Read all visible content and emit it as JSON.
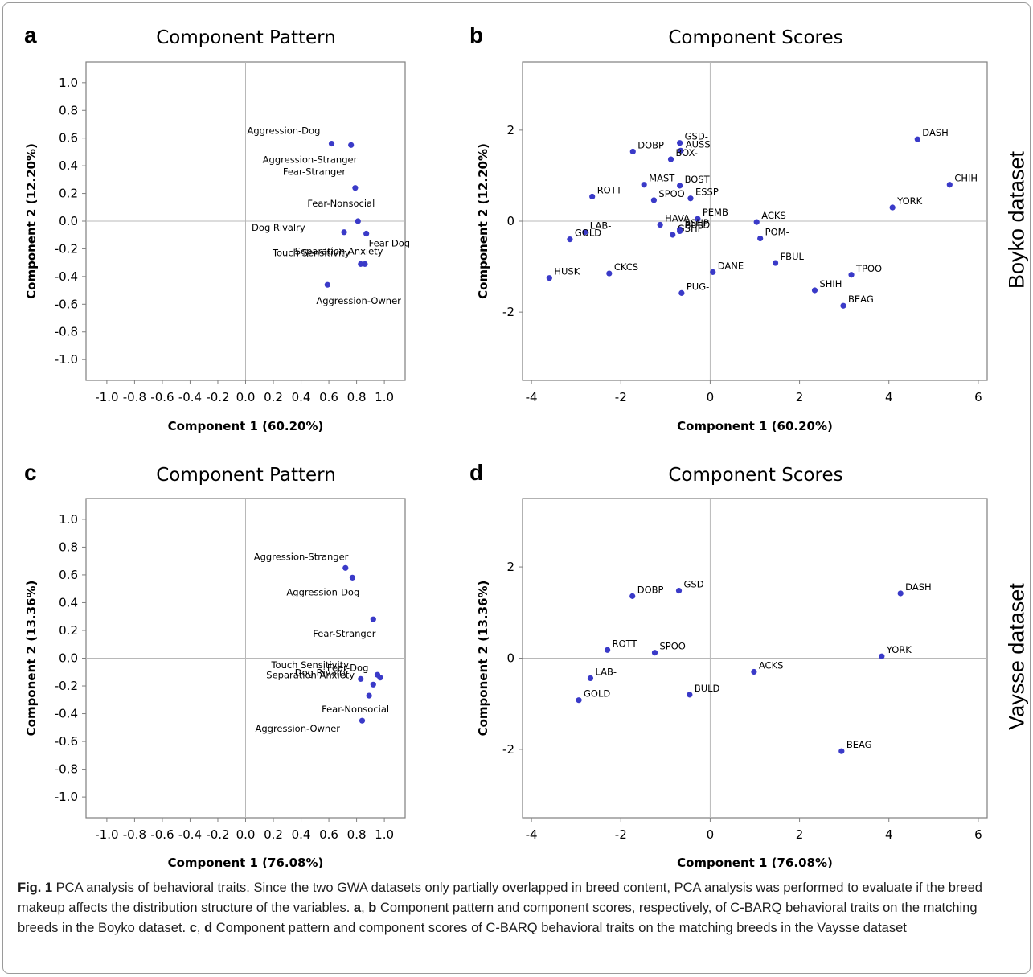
{
  "panels": [
    {
      "letter": "a",
      "chart_data": {
        "type": "scatter",
        "title": "Component Pattern",
        "xlabel": "Component 1 (60.20%)",
        "ylabel": "Component 2 (12.20%)",
        "xlim": [
          -1.15,
          1.15
        ],
        "ylim": [
          -1.15,
          1.15
        ],
        "xticks": [
          "-1.0",
          "-0.8",
          "-0.6",
          "-0.4",
          "-0.2",
          "0.0",
          "0.2",
          "0.4",
          "0.6",
          "0.8",
          "1.0"
        ],
        "xtick_values": [
          -1.0,
          -0.8,
          -0.6,
          -0.4,
          -0.2,
          0.0,
          0.2,
          0.4,
          0.6,
          0.8,
          1.0
        ],
        "yticks": [
          "1.0",
          "0.8",
          "0.6",
          "0.4",
          "0.2",
          "0.0",
          "-0.2",
          "-0.4",
          "-0.6",
          "-0.8",
          "-1.0"
        ],
        "ytick_values": [
          1.0,
          0.8,
          0.6,
          0.4,
          0.2,
          0.0,
          -0.2,
          -0.4,
          -0.6,
          -0.8,
          -1.0
        ],
        "points": [
          {
            "label": "Aggression-Dog",
            "x": 0.62,
            "y": 0.56
          },
          {
            "label": "Aggression-Stranger",
            "x": 0.76,
            "y": 0.55
          },
          {
            "label": "Fear-Stranger",
            "x": 0.79,
            "y": 0.24
          },
          {
            "label": "Fear-Nonsocial",
            "x": 0.81,
            "y": 0.0
          },
          {
            "label": "Dog Rivalry",
            "x": 0.71,
            "y": -0.08
          },
          {
            "label": "Fear-Dog",
            "x": 0.87,
            "y": -0.09
          },
          {
            "label": "Touch Sensitivity",
            "x": 0.86,
            "y": -0.31
          },
          {
            "label": "Separation Anxiety",
            "x": 0.83,
            "y": -0.31
          },
          {
            "label": "Aggression-Owner",
            "x": 0.59,
            "y": -0.46
          }
        ]
      }
    },
    {
      "letter": "b",
      "chart_data": {
        "type": "scatter",
        "title": "Component Scores",
        "xlabel": "Component 1 (60.20%)",
        "ylabel": "Component 2 (12.20%)",
        "xlim": [
          -4.2,
          6.2
        ],
        "ylim": [
          -3.5,
          3.5
        ],
        "xticks": [
          "-4",
          "-2",
          "0",
          "2",
          "4",
          "6"
        ],
        "xtick_values": [
          -4,
          -2,
          0,
          2,
          4,
          6
        ],
        "yticks": [
          "2",
          "0",
          "-2"
        ],
        "ytick_values": [
          2,
          0,
          -2
        ],
        "points": [
          {
            "label": "GSD-",
            "x": -0.68,
            "y": 1.72
          },
          {
            "label": "AUSS",
            "x": -0.66,
            "y": 1.55
          },
          {
            "label": "DOBP",
            "x": -1.73,
            "y": 1.53
          },
          {
            "label": "BOX-",
            "x": -0.88,
            "y": 1.36
          },
          {
            "label": "MAST",
            "x": -1.48,
            "y": 0.8
          },
          {
            "label": "BOST",
            "x": -0.68,
            "y": 0.78
          },
          {
            "label": "ROTT",
            "x": -2.64,
            "y": 0.54
          },
          {
            "label": "ESSP",
            "x": -0.44,
            "y": 0.5
          },
          {
            "label": "SPOO",
            "x": -1.26,
            "y": 0.46
          },
          {
            "label": "PEMB",
            "x": -0.28,
            "y": 0.05
          },
          {
            "label": "HAVA",
            "x": -1.12,
            "y": -0.08
          },
          {
            "label": "SSHP",
            "x": -0.68,
            "y": -0.18
          },
          {
            "label": "GSHP",
            "x": -0.84,
            "y": -0.3
          },
          {
            "label": "BULD",
            "x": -0.68,
            "y": -0.22
          },
          {
            "label": "LAB-",
            "x": -2.8,
            "y": -0.24
          },
          {
            "label": "GOLD",
            "x": -3.14,
            "y": -0.4
          },
          {
            "label": "HUSK",
            "x": -3.6,
            "y": -1.25
          },
          {
            "label": "CKCS",
            "x": -2.26,
            "y": -1.15
          },
          {
            "label": "DANE",
            "x": 0.06,
            "y": -1.12
          },
          {
            "label": "PUG-",
            "x": -0.64,
            "y": -1.58
          },
          {
            "label": "ACKS",
            "x": 1.04,
            "y": -0.02
          },
          {
            "label": "POM-",
            "x": 1.12,
            "y": -0.38
          },
          {
            "label": "FBUL",
            "x": 1.46,
            "y": -0.92
          },
          {
            "label": "SHIH",
            "x": 2.34,
            "y": -1.52
          },
          {
            "label": "TPOO",
            "x": 3.16,
            "y": -1.18
          },
          {
            "label": "BEAG",
            "x": 2.98,
            "y": -1.86
          },
          {
            "label": "YORK",
            "x": 4.08,
            "y": 0.3
          },
          {
            "label": "DASH",
            "x": 4.64,
            "y": 1.8
          },
          {
            "label": "CHIH",
            "x": 5.36,
            "y": 0.8
          }
        ]
      }
    },
    {
      "letter": "c",
      "chart_data": {
        "type": "scatter",
        "title": "Component Pattern",
        "xlabel": "Component 1 (76.08%)",
        "ylabel": "Component 2 (13.36%)",
        "xlim": [
          -1.15,
          1.15
        ],
        "ylim": [
          -1.15,
          1.15
        ],
        "xticks": [
          "-1.0",
          "-0.8",
          "-0.6",
          "-0.4",
          "-0.2",
          "0.0",
          "0.2",
          "0.4",
          "0.6",
          "0.8",
          "1.0"
        ],
        "xtick_values": [
          -1.0,
          -0.8,
          -0.6,
          -0.4,
          -0.2,
          0.0,
          0.2,
          0.4,
          0.6,
          0.8,
          1.0
        ],
        "yticks": [
          "1.0",
          "0.8",
          "0.6",
          "0.4",
          "0.2",
          "0.0",
          "-0.2",
          "-0.4",
          "-0.6",
          "-0.8",
          "-1.0"
        ],
        "ytick_values": [
          1.0,
          0.8,
          0.6,
          0.4,
          0.2,
          0.0,
          -0.2,
          -0.4,
          -0.6,
          -0.8,
          -1.0
        ],
        "points": [
          {
            "label": "Aggression-Stranger",
            "x": 0.72,
            "y": 0.65
          },
          {
            "label": "Aggression-Dog",
            "x": 0.77,
            "y": 0.58
          },
          {
            "label": "Fear-Stranger",
            "x": 0.92,
            "y": 0.28
          },
          {
            "label": "Touch Sensitivity",
            "x": 0.95,
            "y": -0.12
          },
          {
            "label": "Fear-Dog",
            "x": 0.97,
            "y": -0.14
          },
          {
            "label": "Dog Rivalry",
            "x": 0.83,
            "y": -0.15
          },
          {
            "label": "Separation Anxiety",
            "x": 0.92,
            "y": -0.19
          },
          {
            "label": "Fear-Nonsocial",
            "x": 0.89,
            "y": -0.27
          },
          {
            "label": "Aggression-Owner",
            "x": 0.84,
            "y": -0.45
          }
        ]
      }
    },
    {
      "letter": "d",
      "chart_data": {
        "type": "scatter",
        "title": "Component Scores",
        "xlabel": "Component 1 (76.08%)",
        "ylabel": "Component 2 (13.36%)",
        "xlim": [
          -4.2,
          6.2
        ],
        "ylim": [
          -3.5,
          3.5
        ],
        "xticks": [
          "-4",
          "-2",
          "0",
          "2",
          "4",
          "6"
        ],
        "xtick_values": [
          -4,
          -2,
          0,
          2,
          4,
          6
        ],
        "yticks": [
          "2",
          "0",
          "-2"
        ],
        "ytick_values": [
          2,
          0,
          -2
        ],
        "points": [
          {
            "label": "DOBP",
            "x": -1.74,
            "y": 1.36
          },
          {
            "label": "GSD-",
            "x": -0.7,
            "y": 1.48
          },
          {
            "label": "ROTT",
            "x": -2.3,
            "y": 0.18
          },
          {
            "label": "SPOO",
            "x": -1.24,
            "y": 0.12
          },
          {
            "label": "LAB-",
            "x": -2.68,
            "y": -0.44
          },
          {
            "label": "GOLD",
            "x": -2.94,
            "y": -0.92
          },
          {
            "label": "BULD",
            "x": -0.46,
            "y": -0.8
          },
          {
            "label": "ACKS",
            "x": 0.98,
            "y": -0.3
          },
          {
            "label": "YORK",
            "x": 3.84,
            "y": 0.04
          },
          {
            "label": "DASH",
            "x": 4.26,
            "y": 1.42
          },
          {
            "label": "BEAG",
            "x": 2.94,
            "y": -2.04
          }
        ]
      }
    }
  ],
  "side_labels": [
    "Boyko dataset",
    "Vaysse dataset"
  ],
  "caption": {
    "fig_label": "Fig. 1",
    "text1": " PCA analysis of behavioral traits. Since the two GWA datasets only partially overlapped in breed content, PCA analysis was performed to evaluate if the breed makeup affects the distribution structure of the variables. ",
    "ab_label": "a",
    "sep1": ", ",
    "b_label": "b",
    "text2": " Component pattern and component scores, respectively, of C-BARQ behavioral traits on the matching breeds in the Boyko dataset. ",
    "c_label": "c",
    "sep2": ", ",
    "d_label": "d",
    "text3": " Component pattern and component scores of C-BARQ behavioral traits on the matching breeds in the Vaysse dataset"
  },
  "colors": {
    "point": "#3a3ac8",
    "axis_frame": "#7f7f7f",
    "zero_line": "#b8b8b8",
    "frame": "#9a9a9a"
  }
}
